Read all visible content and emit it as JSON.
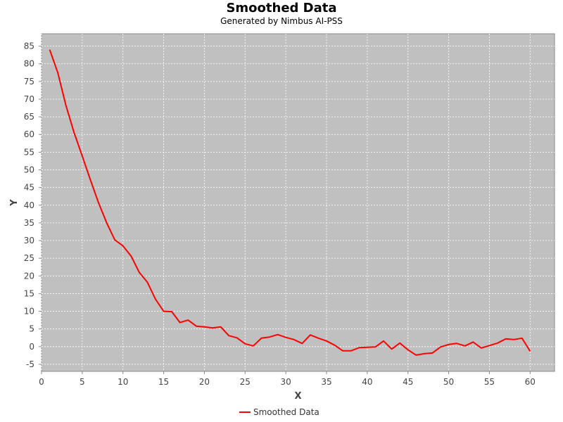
{
  "chart_data": {
    "type": "line",
    "title": "Smoothed Data",
    "subtitle": "Generated by Nimbus AI-PSS",
    "xlabel": "X",
    "ylabel": "Y",
    "xlim": [
      0,
      63
    ],
    "ylim": [
      -7,
      88.5
    ],
    "xticks": [
      0,
      5,
      10,
      15,
      20,
      25,
      30,
      35,
      40,
      45,
      50,
      55,
      60
    ],
    "yticks": [
      -5,
      0,
      5,
      10,
      15,
      20,
      25,
      30,
      35,
      40,
      45,
      50,
      55,
      60,
      65,
      70,
      75,
      80,
      85
    ],
    "grid": true,
    "legend_position": "bottom",
    "colors": {
      "background": "#c0c0c0",
      "grid": "#ffffff",
      "line": "#ff0000"
    },
    "series": [
      {
        "name": "Smoothed Data",
        "x": [
          1,
          2,
          3,
          4,
          5,
          6,
          7,
          8,
          9,
          10,
          11,
          12,
          13,
          14,
          15,
          16,
          17,
          18,
          19,
          20,
          21,
          22,
          23,
          24,
          25,
          26,
          27,
          28,
          29,
          30,
          31,
          32,
          33,
          34,
          35,
          36,
          37,
          38,
          39,
          40,
          41,
          42,
          43,
          44,
          45,
          46,
          47,
          48,
          49,
          50,
          51,
          52,
          53,
          54,
          55,
          56,
          57,
          58,
          59,
          60
        ],
        "y": [
          84,
          77.5,
          68.2,
          60.5,
          53.9,
          47.2,
          40.7,
          35.0,
          30.2,
          28.5,
          25.6,
          21.0,
          18.2,
          13.4,
          10.0,
          9.9,
          6.8,
          7.5,
          5.8,
          5.6,
          5.3,
          5.6,
          3.1,
          2.5,
          0.8,
          0.2,
          2.4,
          2.7,
          3.4,
          2.6,
          2.0,
          0.9,
          3.3,
          2.4,
          1.6,
          0.4,
          -1.2,
          -1.2,
          -0.3,
          -0.2,
          -0.1,
          1.6,
          -0.7,
          1.0,
          -0.9,
          -2.4,
          -2.0,
          -1.8,
          -0.1,
          0.6,
          0.9,
          0.2,
          1.3,
          -0.4,
          0.3,
          1.0,
          2.2,
          2.0,
          2.4,
          -1.3
        ]
      }
    ]
  }
}
